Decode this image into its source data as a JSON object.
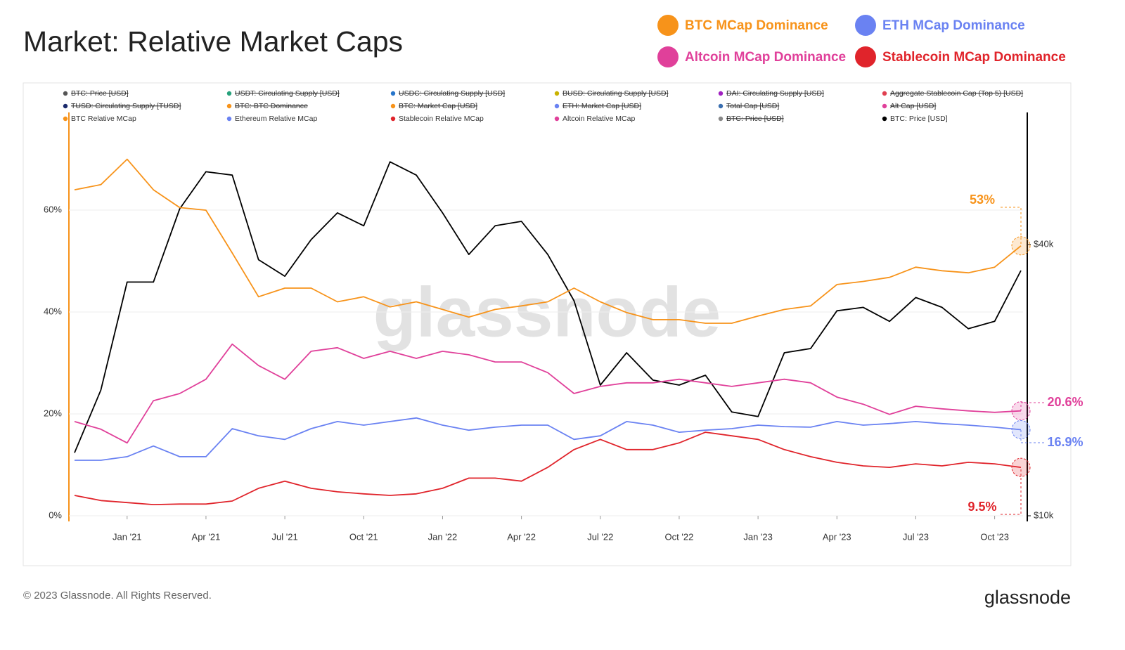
{
  "chart_data": {
    "type": "line",
    "title": "Market: Relative Market Caps",
    "watermark": "glassnode",
    "copyright": "© 2023 Glassnode. All Rights Reserved.",
    "brand": "glassnode",
    "x": [
      "2020-11",
      "2020-12",
      "2021-01",
      "2021-02",
      "2021-03",
      "2021-04",
      "2021-05",
      "2021-06",
      "2021-07",
      "2021-08",
      "2021-09",
      "2021-10",
      "2021-11",
      "2021-12",
      "2022-01",
      "2022-02",
      "2022-03",
      "2022-04",
      "2022-05",
      "2022-06",
      "2022-07",
      "2022-08",
      "2022-09",
      "2022-10",
      "2022-11",
      "2022-12",
      "2023-01",
      "2023-02",
      "2023-03",
      "2023-04",
      "2023-05",
      "2023-06",
      "2023-07",
      "2023-08",
      "2023-09",
      "2023-10",
      "2023-11"
    ],
    "xticks": [
      {
        "value": "2021-01",
        "label": "Jan '21"
      },
      {
        "value": "2021-04",
        "label": "Apr '21"
      },
      {
        "value": "2021-07",
        "label": "Jul '21"
      },
      {
        "value": "2021-10",
        "label": "Oct '21"
      },
      {
        "value": "2022-01",
        "label": "Jan '22"
      },
      {
        "value": "2022-04",
        "label": "Apr '22"
      },
      {
        "value": "2022-07",
        "label": "Jul '22"
      },
      {
        "value": "2022-10",
        "label": "Oct '22"
      },
      {
        "value": "2023-01",
        "label": "Jan '23"
      },
      {
        "value": "2023-04",
        "label": "Apr '23"
      },
      {
        "value": "2023-07",
        "label": "Jul '23"
      },
      {
        "value": "2023-10",
        "label": "Oct '23"
      }
    ],
    "ylim": [
      0,
      76.7
    ],
    "yticks": [
      {
        "value": 0,
        "label": "0%"
      },
      {
        "value": 20,
        "label": "20%"
      },
      {
        "value": 40,
        "label": "40%"
      },
      {
        "value": 60,
        "label": "60%"
      }
    ],
    "y2lim": [
      10000,
      73600
    ],
    "y2_log": true,
    "y2ticks": [
      {
        "value": 10000,
        "label": "$10k"
      },
      {
        "value": 40000,
        "label": "$40k"
      }
    ],
    "grid": true,
    "series": [
      {
        "name": "BTC MCap Dominance",
        "color": "#f7931a",
        "values": [
          64,
          65,
          70,
          64,
          60.5,
          60,
          51.6,
          43,
          44.7,
          44.7,
          42,
          43,
          41,
          42,
          40.5,
          39,
          40.5,
          41.2,
          42,
          44.7,
          42,
          39.9,
          38.5,
          38.5,
          37.8,
          37.8,
          39.2,
          40.5,
          41.2,
          45.4,
          46,
          46.8,
          48.8,
          48.1,
          47.7,
          48.8,
          53
        ],
        "value_labels": [
          null,
          null,
          null,
          null,
          null,
          null,
          null,
          null,
          null,
          null,
          null,
          null,
          null,
          null,
          null,
          null,
          null,
          null,
          null,
          null,
          null,
          null,
          null,
          null,
          null,
          null,
          null,
          null,
          null,
          null,
          null,
          null,
          null,
          null,
          null,
          null,
          "53%"
        ]
      },
      {
        "name": "Altcoin MCap Dominance",
        "color": "#e0409a",
        "values": [
          18.5,
          17,
          14.3,
          22.6,
          24,
          26.8,
          33.7,
          29.5,
          26.8,
          32.3,
          33,
          30.9,
          32.3,
          30.9,
          32.3,
          31.6,
          30.2,
          30.2,
          28.1,
          24,
          25.4,
          26.1,
          26.1,
          26.8,
          26.1,
          25.4,
          26.1,
          26.8,
          26.1,
          23.3,
          21.9,
          19.9,
          21.5,
          21,
          20.6,
          20.3,
          20.6
        ],
        "value_labels": [
          null,
          null,
          null,
          null,
          null,
          null,
          null,
          null,
          null,
          null,
          null,
          null,
          null,
          null,
          null,
          null,
          null,
          null,
          null,
          null,
          null,
          null,
          null,
          null,
          null,
          null,
          null,
          null,
          null,
          null,
          null,
          null,
          null,
          null,
          null,
          null,
          "20.6%"
        ]
      },
      {
        "name": "ETH MCap Dominance",
        "color": "#6a82f2",
        "values": [
          10.9,
          10.9,
          11.6,
          13.7,
          11.6,
          11.6,
          17.1,
          15.7,
          15,
          17.1,
          18.5,
          17.8,
          18.5,
          19.2,
          17.8,
          16.8,
          17.4,
          17.8,
          17.8,
          15,
          15.7,
          18.5,
          17.8,
          16.4,
          16.8,
          17.1,
          17.8,
          17.5,
          17.4,
          18.5,
          17.8,
          18.1,
          18.5,
          18.1,
          17.8,
          17.4,
          16.9
        ],
        "value_labels": [
          null,
          null,
          null,
          null,
          null,
          null,
          null,
          null,
          null,
          null,
          null,
          null,
          null,
          null,
          null,
          null,
          null,
          null,
          null,
          null,
          null,
          null,
          null,
          null,
          null,
          null,
          null,
          null,
          null,
          null,
          null,
          null,
          null,
          null,
          null,
          null,
          "16.9%"
        ]
      },
      {
        "name": "Stablecoin MCap Dominance",
        "color": "#e0242b",
        "values": [
          4,
          3,
          2.6,
          2.2,
          2.3,
          2.3,
          2.9,
          5.4,
          6.8,
          5.4,
          4.7,
          4.3,
          4,
          4.3,
          5.4,
          7.4,
          7.4,
          6.8,
          9.5,
          13,
          15,
          13,
          13,
          14.3,
          16.4,
          15.7,
          15,
          13,
          11.6,
          10.5,
          9.8,
          9.5,
          10.2,
          9.8,
          10.5,
          10.2,
          9.5
        ],
        "value_labels": [
          null,
          null,
          null,
          null,
          null,
          null,
          null,
          null,
          null,
          null,
          null,
          null,
          null,
          null,
          null,
          null,
          null,
          null,
          null,
          null,
          null,
          null,
          null,
          null,
          null,
          null,
          null,
          null,
          null,
          null,
          null,
          null,
          null,
          null,
          null,
          null,
          "9.5%"
        ]
      },
      {
        "name": "BTC: Price [USD]",
        "color": "#000000",
        "axis": "y2",
        "values": [
          13800,
          19000,
          33000,
          33000,
          48000,
          58000,
          57000,
          37000,
          34000,
          41000,
          47000,
          44000,
          61000,
          57000,
          47000,
          38000,
          44000,
          45000,
          38000,
          30000,
          19500,
          23000,
          20000,
          19500,
          20500,
          17000,
          16600,
          23000,
          23500,
          28500,
          29000,
          27000,
          30500,
          29000,
          26000,
          27000,
          35000
        ]
      }
    ],
    "legend_entries": [
      {
        "name": "BTC: Price [USD]",
        "color": "#555555",
        "hidden": true
      },
      {
        "name": "USDT: Circulating Supply [USD]",
        "color": "#26a17b",
        "hidden": true
      },
      {
        "name": "USDC: Circulating Supply [USD]",
        "color": "#2775ca",
        "hidden": true
      },
      {
        "name": "BUSD: Circulating Supply [USD]",
        "color": "#c9b200",
        "hidden": true
      },
      {
        "name": "DAI: Circulating Supply [USD]",
        "color": "#a020c0",
        "hidden": true
      },
      {
        "name": "Aggregate Stablecoin Cap (Top 5) [USD]",
        "color": "#e04050",
        "hidden": true
      },
      {
        "name": "TUSD: Circulating Supply [TUSD]",
        "color": "#1a2a6c",
        "hidden": true
      },
      {
        "name": "BTC: BTC Dominance",
        "color": "#f7931a",
        "hidden": true
      },
      {
        "name": "BTC: Market Cap [USD]",
        "color": "#f7931a",
        "hidden": true
      },
      {
        "name": "ETH: Market Cap [USD]",
        "color": "#6a82f2",
        "hidden": true
      },
      {
        "name": "Total Cap [USD]",
        "color": "#3a6fb0",
        "hidden": true
      },
      {
        "name": "Alt Cap [USD]",
        "color": "#e0409a",
        "hidden": true
      },
      {
        "name": "BTC Relative MCap",
        "color": "#f7931a",
        "hidden": false
      },
      {
        "name": "Ethereum Relative MCap",
        "color": "#6a82f2",
        "hidden": false
      },
      {
        "name": "Stablecoin Relative MCap",
        "color": "#e0242b",
        "hidden": false
      },
      {
        "name": "Altcoin Relative MCap",
        "color": "#e0409a",
        "hidden": false
      },
      {
        "name": "BTC: Price [USD]",
        "color": "#888888",
        "hidden": true
      }
    ]
  }
}
